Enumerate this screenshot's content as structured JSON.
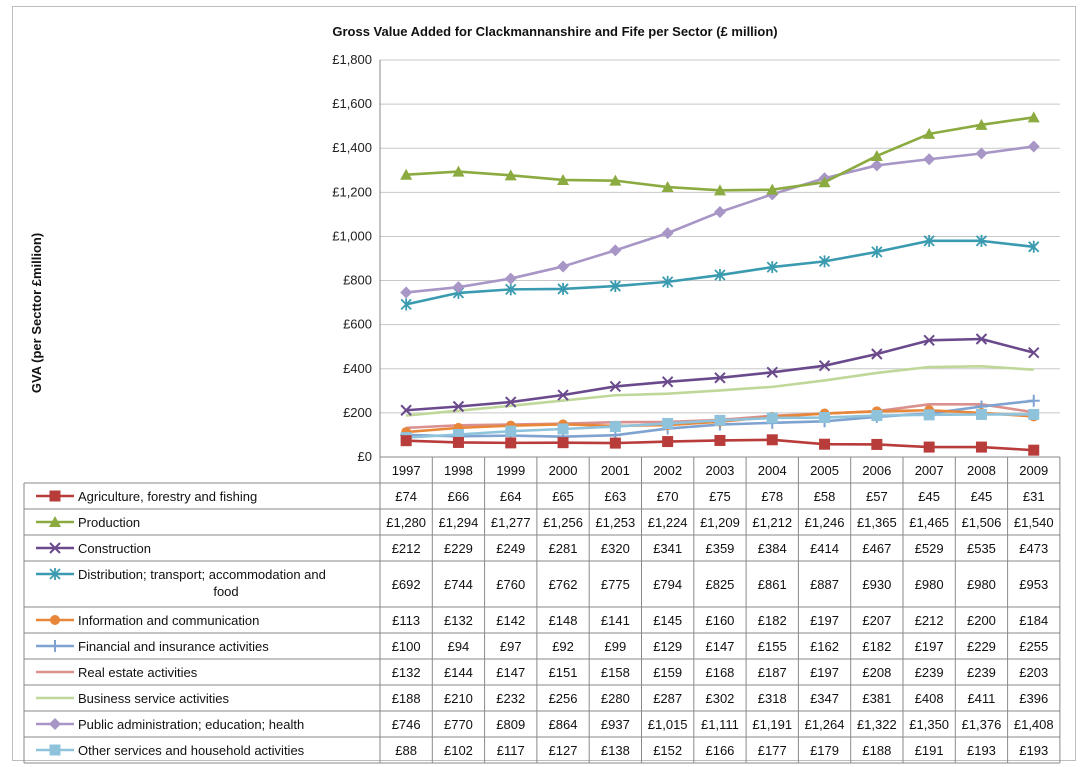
{
  "chart_data": {
    "type": "line",
    "title": "Gross Value Added for Clackmannanshire and Fife per Sector (£ million)",
    "ylabel": "GVA (per Secttor £million)",
    "xlabel": "",
    "ylim": [
      0,
      1800
    ],
    "ytick_labels": [
      "£0",
      "£200",
      "£400",
      "£600",
      "£800",
      "£1,000",
      "£1,200",
      "£1,400",
      "£1,600",
      "£1,800"
    ],
    "grid": "horizontal",
    "legend": "data-table",
    "categories": [
      "1997",
      "1998",
      "1999",
      "2000",
      "2001",
      "2002",
      "2003",
      "2004",
      "2005",
      "2006",
      "2007",
      "2008",
      "2009"
    ],
    "series": [
      {
        "name": "Agriculture, forestry and fishing",
        "color": "#b83c3a",
        "marker": "square",
        "values": [
          74,
          66,
          64,
          65,
          63,
          70,
          75,
          78,
          58,
          57,
          45,
          45,
          31
        ],
        "labels": [
          "£74",
          "£66",
          "£64",
          "£65",
          "£63",
          "£70",
          "£75",
          "£78",
          "£58",
          "£57",
          "£45",
          "£45",
          "£31"
        ]
      },
      {
        "name": "Production",
        "color": "#8bab41",
        "marker": "triangle",
        "values": [
          1280,
          1294,
          1277,
          1256,
          1253,
          1224,
          1209,
          1212,
          1246,
          1365,
          1465,
          1506,
          1540
        ],
        "labels": [
          "£1,280",
          "£1,294",
          "£1,277",
          "£1,256",
          "£1,253",
          "£1,224",
          "£1,209",
          "£1,212",
          "£1,246",
          "£1,365",
          "£1,465",
          "£1,506",
          "£1,540"
        ]
      },
      {
        "name": "Construction",
        "color": "#6a4a8c",
        "marker": "x",
        "values": [
          212,
          229,
          249,
          281,
          320,
          341,
          359,
          384,
          414,
          467,
          529,
          535,
          473
        ],
        "labels": [
          "£212",
          "£229",
          "£249",
          "£281",
          "£320",
          "£341",
          "£359",
          "£384",
          "£414",
          "£467",
          "£529",
          "£535",
          "£473"
        ]
      },
      {
        "name": "Distribution; transport; accommodation and food",
        "color": "#3a9bb0",
        "marker": "star",
        "values": [
          692,
          744,
          760,
          762,
          775,
          794,
          825,
          861,
          887,
          930,
          980,
          980,
          953
        ],
        "labels": [
          "£692",
          "£744",
          "£760",
          "£762",
          "£775",
          "£794",
          "£825",
          "£861",
          "£887",
          "£930",
          "£980",
          "£980",
          "£953"
        ]
      },
      {
        "name": "Information and communication",
        "color": "#e8873a",
        "marker": "circle",
        "values": [
          113,
          132,
          142,
          148,
          141,
          145,
          160,
          182,
          197,
          207,
          212,
          200,
          184
        ],
        "labels": [
          "£113",
          "£132",
          "£142",
          "£148",
          "£141",
          "£145",
          "£160",
          "£182",
          "£197",
          "£207",
          "£212",
          "£200",
          "£184"
        ]
      },
      {
        "name": "Financial and insurance activities",
        "color": "#7fa3d0",
        "marker": "plus",
        "values": [
          100,
          94,
          97,
          92,
          99,
          129,
          147,
          155,
          162,
          182,
          197,
          229,
          255
        ],
        "labels": [
          "£100",
          "£94",
          "£97",
          "£92",
          "£99",
          "£129",
          "£147",
          "£155",
          "£162",
          "£182",
          "£197",
          "£229",
          "£255"
        ]
      },
      {
        "name": "Real estate activities",
        "color": "#d9908e",
        "marker": "none",
        "values": [
          132,
          144,
          147,
          151,
          158,
          159,
          168,
          187,
          197,
          208,
          239,
          239,
          203
        ],
        "labels": [
          "£132",
          "£144",
          "£147",
          "£151",
          "£158",
          "£159",
          "£168",
          "£187",
          "£197",
          "£208",
          "£239",
          "£239",
          "£203"
        ]
      },
      {
        "name": "Business service activities",
        "color": "#bfd89a",
        "marker": "none",
        "values": [
          188,
          210,
          232,
          256,
          280,
          287,
          302,
          318,
          347,
          381,
          408,
          411,
          396
        ],
        "labels": [
          "£188",
          "£210",
          "£232",
          "£256",
          "£280",
          "£287",
          "£302",
          "£318",
          "£347",
          "£381",
          "£408",
          "£411",
          "£396"
        ]
      },
      {
        "name": "Public administration; education; health",
        "color": "#a896c6",
        "marker": "diamond",
        "values": [
          746,
          770,
          809,
          864,
          937,
          1015,
          1111,
          1191,
          1264,
          1322,
          1350,
          1376,
          1408
        ],
        "labels": [
          "£746",
          "£770",
          "£809",
          "£864",
          "£937",
          "£1,015",
          "£1,111",
          "£1,191",
          "£1,264",
          "£1,322",
          "£1,350",
          "£1,376",
          "£1,408"
        ]
      },
      {
        "name": "Other services and household activities",
        "color": "#8fc3dc",
        "marker": "square",
        "values": [
          88,
          102,
          117,
          127,
          138,
          152,
          166,
          177,
          179,
          188,
          191,
          193,
          193
        ],
        "labels": [
          "£88",
          "£102",
          "£117",
          "£127",
          "£138",
          "£152",
          "£166",
          "£177",
          "£179",
          "£188",
          "£191",
          "£193",
          "£193"
        ]
      }
    ]
  }
}
